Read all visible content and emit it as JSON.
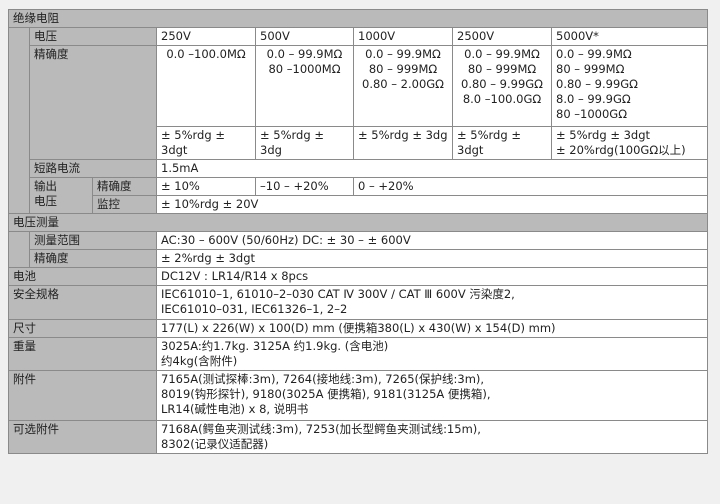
{
  "insulation": {
    "title": "绝缘电阻",
    "voltage_label": "电压",
    "voltages": [
      "250V",
      "500V",
      "1000V",
      "2500V",
      "5000V*"
    ],
    "accuracy_label": "精确度",
    "ranges": [
      "0.0 –100.0MΩ",
      "0.0 – 99.9MΩ\n80 –1000MΩ",
      "0.0 – 99.9MΩ\n80 –  999MΩ\n0.80 – 2.00GΩ",
      "0.0 – 99.9MΩ\n80 –  999MΩ\n0.80 – 9.99GΩ\n8.0 –100.0GΩ",
      "0.0 – 99.9MΩ\n80 –  999MΩ\n0.80 – 9.99GΩ\n8.0 – 99.9GΩ\n80 –1000GΩ"
    ],
    "accuracies": [
      "± 5%rdg ± 3dgt",
      "± 5%rdg ± 3dg",
      "± 5%rdg ± 3dg",
      "± 5%rdg ± 3dgt",
      "± 5%rdg ± 3dgt\n± 20%rdg(100GΩ以上)"
    ],
    "short_circuit_label": "短路电流",
    "short_circuit_value": "1.5mA",
    "output_voltage_label": "输出\n电压",
    "output_accuracy_label": "精确度",
    "output_accuracy_values": [
      "± 10%",
      "–10 – +20%",
      "0 – +20%"
    ],
    "monitor_label": "监控",
    "monitor_value": "± 10%rdg ± 20V"
  },
  "voltage_measurement": {
    "title": "电压测量",
    "range_label": "测量范围",
    "range_value": "AC:30 – 600V (50/60Hz)   DC: ± 30 –  ± 600V",
    "accuracy_label": "精确度",
    "accuracy_value": "± 2%rdg ± 3dgt"
  },
  "rows": [
    {
      "label": "电池",
      "value": "DC12V : LR14/R14 x 8pcs"
    },
    {
      "label": "安全规格",
      "value": "IEC61010–1, 61010–2–030 CAT Ⅳ 300V / CAT Ⅲ 600V 污染度2,\nIEC61010–031, IEC61326–1, 2–2"
    },
    {
      "label": "尺寸",
      "value": "177(L) x 226(W) x 100(D) mm  (便携箱380(L) x 430(W) x 154(D) mm)"
    },
    {
      "label": "重量",
      "value": "3025A:约1.7kg. 3125A 约1.9kg. (含电池)\n约4kg(含附件)"
    },
    {
      "label": "附件",
      "value": "7165A(测试探棒:3m), 7264(接地线:3m), 7265(保护线:3m),\n8019(钩形探针), 9180(3025A 便携箱), 9181(3125A 便携箱),\nLR14(碱性电池) x 8,     说明书"
    },
    {
      "label": "可选附件",
      "value": "7168A(鳄鱼夹测试线:3m), 7253(加长型鳄鱼夹测试线:15m),\n8302(记录仪适配器)"
    }
  ]
}
